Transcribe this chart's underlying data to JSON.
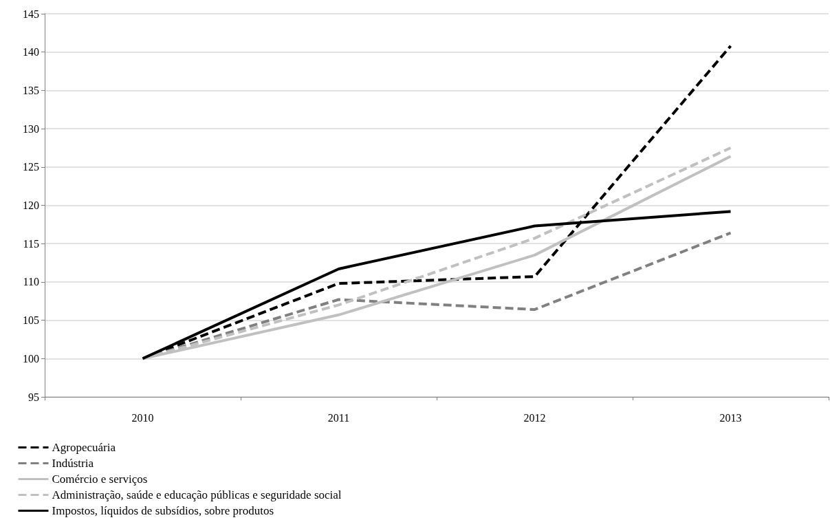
{
  "chart_data": {
    "type": "line",
    "categories": [
      "2010",
      "2011",
      "2012",
      "2013"
    ],
    "series": [
      {
        "name": "Agropecuária",
        "color": "#000000",
        "line_style": "dashed",
        "values": [
          100,
          109.8,
          110.7,
          140.8
        ]
      },
      {
        "name": "Indústria",
        "color": "#808080",
        "line_style": "dashed",
        "values": [
          100,
          107.7,
          106.4,
          116.4
        ]
      },
      {
        "name": "Comércio e serviços",
        "color": "#c0c0c0",
        "line_style": "solid",
        "values": [
          100,
          105.7,
          113.5,
          126.4
        ]
      },
      {
        "name": "Administração, saúde e educação públicas e seguridade social",
        "color": "#c0c0c0",
        "line_style": "dashed",
        "values": [
          100,
          107.0,
          115.7,
          127.5
        ]
      },
      {
        "name": "Impostos, líquidos de subsídios, sobre produtos",
        "color": "#000000",
        "line_style": "solid",
        "values": [
          100,
          111.7,
          117.3,
          119.2
        ]
      }
    ],
    "ylim": [
      95,
      145
    ],
    "yticks": [
      95,
      100,
      105,
      110,
      115,
      120,
      125,
      130,
      135,
      140,
      145
    ],
    "grid": "y",
    "legend": "bottom left",
    "marker": "none"
  }
}
